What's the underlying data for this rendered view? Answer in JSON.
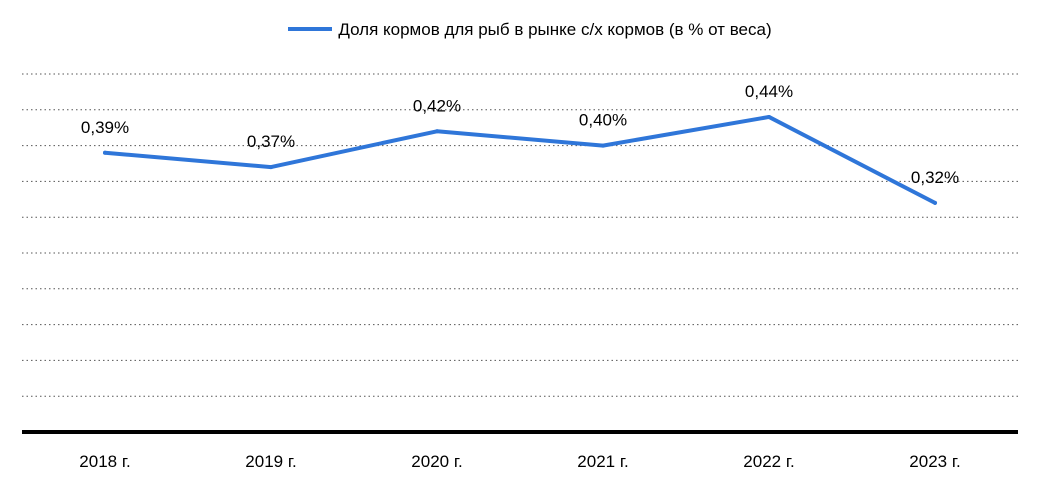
{
  "chart_data": {
    "type": "line",
    "categories": [
      "2018 г.",
      "2019 г.",
      "2020 г.",
      "2021 г.",
      "2022 г.",
      "2023 г."
    ],
    "series": [
      {
        "name": "Доля кормов для рыб в рынке с/х кормов (в % от веса)",
        "values": [
          0.39,
          0.37,
          0.42,
          0.4,
          0.44,
          0.32
        ],
        "labels": [
          "0,39%",
          "0,37%",
          "0,42%",
          "0,40%",
          "0,44%",
          "0,32%"
        ],
        "color": "#2f76d9"
      }
    ],
    "ylim": [
      0.0,
      0.5
    ],
    "y_gridlines": [
      0.05,
      0.1,
      0.15,
      0.2,
      0.25,
      0.3,
      0.35,
      0.4,
      0.45,
      0.5
    ],
    "grid": "dotted horizontal",
    "legend_position": "top",
    "xlabel": "",
    "ylabel": ""
  }
}
